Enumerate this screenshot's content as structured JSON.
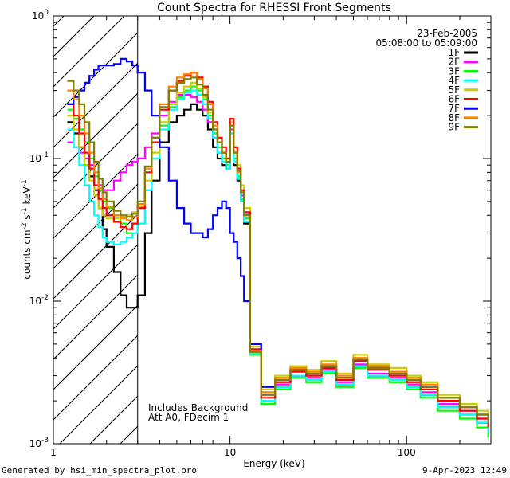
{
  "chart_data": {
    "type": "line",
    "title": "Count Spectra for RHESSI Front Segments",
    "xlabel": "Energy (keV)",
    "ylabel": "counts cm-2 s-1 keV-1",
    "xscale": "log",
    "yscale": "log",
    "xlim": [
      1,
      300
    ],
    "ylim": [
      0.001,
      1
    ],
    "x_ticks": [
      {
        "v": 1,
        "label": "1"
      },
      {
        "v": 10,
        "label": "10"
      },
      {
        "v": 100,
        "label": "100"
      }
    ],
    "y_ticks": [
      {
        "v": 1,
        "base": "10",
        "exp": "0"
      },
      {
        "v": 0.1,
        "base": "10",
        "exp": "-1"
      },
      {
        "v": 0.01,
        "base": "10",
        "exp": "-2"
      },
      {
        "v": 0.001,
        "base": "10",
        "exp": "-3"
      }
    ],
    "hatched_region": {
      "from": 1,
      "to": 3
    },
    "date": "23-Feb-2005",
    "time_range": "05:08:00 to 05:09:00",
    "notes": [
      "Includes Background",
      "Att A0, FDecim 1"
    ],
    "series": [
      {
        "name": "1F",
        "color": "#000000",
        "x": [
          1.2,
          1.3,
          1.4,
          1.5,
          1.6,
          1.7,
          1.8,
          1.9,
          2.0,
          2.2,
          2.4,
          2.6,
          2.8,
          3.0,
          3.3,
          3.6,
          4.0,
          4.5,
          5.0,
          5.5,
          6.0,
          6.5,
          7.0,
          7.5,
          8.0,
          8.5,
          9.0,
          9.5,
          10.0,
          10.5,
          11.0,
          11.5,
          12.0,
          13.0,
          15.0,
          18.0,
          22.0,
          27.0,
          33.0,
          40.0,
          50.0,
          60.0,
          70.0,
          80.0,
          100.0,
          120.0,
          150.0,
          200.0,
          250.0,
          290.0
        ],
        "y": [
          0.18,
          0.15,
          0.12,
          0.09,
          0.075,
          0.06,
          0.045,
          0.032,
          0.024,
          0.016,
          0.011,
          0.009,
          0.009,
          0.011,
          0.03,
          0.07,
          0.13,
          0.18,
          0.2,
          0.22,
          0.24,
          0.22,
          0.2,
          0.16,
          0.12,
          0.1,
          0.09,
          0.085,
          0.15,
          0.09,
          0.07,
          0.05,
          0.035,
          0.0045,
          0.002,
          0.0025,
          0.003,
          0.0028,
          0.0032,
          0.0026,
          0.0035,
          0.003,
          0.003,
          0.0028,
          0.0025,
          0.0022,
          0.0018,
          0.0016,
          0.0014,
          0.0012
        ]
      },
      {
        "name": "2F",
        "color": "#ff00ff",
        "x": [
          1.2,
          1.3,
          1.4,
          1.5,
          1.6,
          1.7,
          1.8,
          1.9,
          2.0,
          2.2,
          2.4,
          2.6,
          2.8,
          3.0,
          3.3,
          3.6,
          4.0,
          4.5,
          5.0,
          5.5,
          6.0,
          6.5,
          7.0,
          7.5,
          8.0,
          8.5,
          9.0,
          9.5,
          10.0,
          10.5,
          11.0,
          11.5,
          12.0,
          13.0,
          15.0,
          18.0,
          22.0,
          27.0,
          33.0,
          40.0,
          50.0,
          60.0,
          70.0,
          80.0,
          100.0,
          120.0,
          150.0,
          200.0,
          250.0,
          290.0
        ],
        "y": [
          0.13,
          0.12,
          0.11,
          0.1,
          0.09,
          0.075,
          0.065,
          0.06,
          0.06,
          0.07,
          0.08,
          0.09,
          0.095,
          0.1,
          0.12,
          0.15,
          0.2,
          0.25,
          0.28,
          0.28,
          0.27,
          0.25,
          0.22,
          0.18,
          0.14,
          0.11,
          0.1,
          0.09,
          0.16,
          0.1,
          0.08,
          0.055,
          0.04,
          0.005,
          0.0022,
          0.0026,
          0.003,
          0.0029,
          0.0033,
          0.0027,
          0.0036,
          0.0031,
          0.0031,
          0.0029,
          0.0026,
          0.0023,
          0.0019,
          0.0017,
          0.0015,
          0.0013
        ]
      },
      {
        "name": "3F",
        "color": "#00ff00",
        "x": [
          1.2,
          1.3,
          1.4,
          1.5,
          1.6,
          1.7,
          1.8,
          1.9,
          2.0,
          2.2,
          2.4,
          2.6,
          2.8,
          3.0,
          3.3,
          3.6,
          4.0,
          4.5,
          5.0,
          5.5,
          6.0,
          6.5,
          7.0,
          7.5,
          8.0,
          8.5,
          9.0,
          9.5,
          10.0,
          10.5,
          11.0,
          11.5,
          12.0,
          13.0,
          15.0,
          18.0,
          22.0,
          27.0,
          33.0,
          40.0,
          50.0,
          60.0,
          70.0,
          80.0,
          100.0,
          120.0,
          150.0,
          200.0,
          250.0,
          290.0
        ],
        "y": [
          0.22,
          0.19,
          0.16,
          0.13,
          0.1,
          0.075,
          0.06,
          0.05,
          0.045,
          0.04,
          0.035,
          0.03,
          0.03,
          0.035,
          0.06,
          0.1,
          0.17,
          0.23,
          0.27,
          0.3,
          0.32,
          0.3,
          0.26,
          0.2,
          0.15,
          0.12,
          0.1,
          0.09,
          0.17,
          0.1,
          0.075,
          0.052,
          0.038,
          0.0042,
          0.0019,
          0.0024,
          0.0029,
          0.0027,
          0.0031,
          0.0025,
          0.0034,
          0.0029,
          0.0029,
          0.0027,
          0.0024,
          0.0021,
          0.0017,
          0.0015,
          0.0013,
          0.0011
        ]
      },
      {
        "name": "4F",
        "color": "#00ffff",
        "x": [
          1.2,
          1.3,
          1.4,
          1.5,
          1.6,
          1.7,
          1.8,
          1.9,
          2.0,
          2.2,
          2.4,
          2.6,
          2.8,
          3.0,
          3.3,
          3.6,
          4.0,
          4.5,
          5.0,
          5.5,
          6.0,
          6.5,
          7.0,
          7.5,
          8.0,
          8.5,
          9.0,
          9.5,
          10.0,
          10.5,
          11.0,
          11.5,
          12.0,
          13.0,
          15.0,
          18.0,
          22.0,
          27.0,
          33.0,
          40.0,
          50.0,
          60.0,
          70.0,
          80.0,
          100.0,
          120.0,
          150.0,
          200.0,
          250.0,
          290.0
        ],
        "y": [
          0.16,
          0.12,
          0.09,
          0.065,
          0.05,
          0.04,
          0.033,
          0.028,
          0.026,
          0.025,
          0.026,
          0.028,
          0.03,
          0.035,
          0.06,
          0.1,
          0.16,
          0.22,
          0.26,
          0.29,
          0.3,
          0.28,
          0.24,
          0.19,
          0.14,
          0.11,
          0.095,
          0.085,
          0.15,
          0.095,
          0.072,
          0.05,
          0.036,
          0.0043,
          0.002,
          0.0025,
          0.003,
          0.0028,
          0.0032,
          0.0026,
          0.0035,
          0.003,
          0.003,
          0.0028,
          0.0025,
          0.0022,
          0.0018,
          0.0016,
          0.0014,
          0.0012
        ]
      },
      {
        "name": "5F",
        "color": "#cccc00",
        "x": [
          1.2,
          1.3,
          1.4,
          1.5,
          1.6,
          1.7,
          1.8,
          1.9,
          2.0,
          2.2,
          2.4,
          2.6,
          2.8,
          3.0,
          3.3,
          3.6,
          4.0,
          4.5,
          5.0,
          5.5,
          6.0,
          6.5,
          7.0,
          7.5,
          8.0,
          8.5,
          9.0,
          9.5,
          10.0,
          10.5,
          11.0,
          11.5,
          12.0,
          13.0,
          15.0,
          18.0,
          22.0,
          27.0,
          33.0,
          40.0,
          50.0,
          60.0,
          70.0,
          80.0,
          100.0,
          120.0,
          150.0,
          200.0,
          250.0,
          290.0
        ],
        "y": [
          0.2,
          0.16,
          0.12,
          0.09,
          0.07,
          0.055,
          0.045,
          0.04,
          0.038,
          0.038,
          0.039,
          0.04,
          0.042,
          0.046,
          0.07,
          0.11,
          0.18,
          0.24,
          0.29,
          0.32,
          0.34,
          0.31,
          0.27,
          0.21,
          0.16,
          0.13,
          0.11,
          0.1,
          0.18,
          0.12,
          0.09,
          0.065,
          0.045,
          0.0048,
          0.0024,
          0.003,
          0.0035,
          0.0033,
          0.0038,
          0.0031,
          0.0042,
          0.0036,
          0.0036,
          0.0034,
          0.003,
          0.0027,
          0.0022,
          0.0019,
          0.0017,
          0.0014
        ]
      },
      {
        "name": "6F",
        "color": "#ff0000",
        "x": [
          1.2,
          1.3,
          1.4,
          1.5,
          1.6,
          1.7,
          1.8,
          1.9,
          2.0,
          2.2,
          2.4,
          2.6,
          2.8,
          3.0,
          3.3,
          3.6,
          4.0,
          4.5,
          5.0,
          5.5,
          6.0,
          6.5,
          7.0,
          7.5,
          8.0,
          8.5,
          9.0,
          9.5,
          10.0,
          10.5,
          11.0,
          11.5,
          12.0,
          13.0,
          15.0,
          18.0,
          22.0,
          27.0,
          33.0,
          40.0,
          50.0,
          60.0,
          70.0,
          80.0,
          100.0,
          120.0,
          150.0,
          200.0,
          250.0,
          290.0
        ],
        "y": [
          0.24,
          0.2,
          0.15,
          0.11,
          0.085,
          0.065,
          0.052,
          0.045,
          0.04,
          0.036,
          0.033,
          0.032,
          0.035,
          0.045,
          0.08,
          0.13,
          0.22,
          0.3,
          0.35,
          0.38,
          0.4,
          0.37,
          0.32,
          0.25,
          0.18,
          0.14,
          0.12,
          0.1,
          0.19,
          0.12,
          0.085,
          0.06,
          0.042,
          0.0046,
          0.0021,
          0.0027,
          0.0032,
          0.003,
          0.0034,
          0.0028,
          0.0038,
          0.0033,
          0.0033,
          0.003,
          0.0027,
          0.0024,
          0.002,
          0.0017,
          0.0015,
          0.0013
        ]
      },
      {
        "name": "7F",
        "color": "#0000ff",
        "x": [
          1.2,
          1.3,
          1.4,
          1.5,
          1.6,
          1.7,
          1.8,
          1.9,
          2.0,
          2.2,
          2.4,
          2.6,
          2.8,
          3.0,
          3.3,
          3.6,
          4.0,
          4.5,
          5.0,
          5.5,
          6.0,
          6.5,
          7.0,
          7.5,
          8.0,
          8.5,
          9.0,
          9.5,
          10.0,
          10.5,
          11.0,
          11.5,
          12.0,
          13.0,
          15.0,
          18.0,
          22.0,
          27.0,
          33.0,
          40.0,
          50.0,
          60.0,
          70.0,
          80.0,
          100.0,
          120.0,
          150.0,
          200.0,
          250.0,
          290.0
        ],
        "y": [
          0.24,
          0.27,
          0.3,
          0.34,
          0.38,
          0.42,
          0.45,
          0.45,
          0.45,
          0.46,
          0.5,
          0.48,
          0.45,
          0.4,
          0.3,
          0.2,
          0.12,
          0.07,
          0.045,
          0.035,
          0.03,
          0.03,
          0.028,
          0.032,
          0.04,
          0.045,
          0.05,
          0.045,
          0.03,
          0.026,
          0.02,
          0.015,
          0.01,
          0.005,
          0.0025,
          0.0028,
          0.0033,
          0.0031,
          0.0035,
          0.0029,
          0.0039,
          0.0034,
          0.0034,
          0.0031,
          0.0028,
          0.0025,
          0.0021,
          0.0018,
          0.0016,
          0.0014
        ]
      },
      {
        "name": "8F",
        "color": "#ff8000",
        "x": [
          1.2,
          1.3,
          1.4,
          1.5,
          1.6,
          1.7,
          1.8,
          1.9,
          2.0,
          2.2,
          2.4,
          2.6,
          2.8,
          3.0,
          3.3,
          3.6,
          4.0,
          4.5,
          5.0,
          5.5,
          6.0,
          6.5,
          7.0,
          7.5,
          8.0,
          8.5,
          9.0,
          9.5,
          10.0,
          10.5,
          11.0,
          11.5,
          12.0,
          13.0,
          15.0,
          18.0,
          22.0,
          27.0,
          33.0,
          40.0,
          50.0,
          60.0,
          70.0,
          80.0,
          100.0,
          120.0,
          150.0,
          200.0,
          250.0,
          290.0
        ],
        "y": [
          0.3,
          0.26,
          0.2,
          0.15,
          0.11,
          0.08,
          0.062,
          0.052,
          0.046,
          0.04,
          0.038,
          0.037,
          0.039,
          0.048,
          0.085,
          0.14,
          0.24,
          0.32,
          0.37,
          0.39,
          0.4,
          0.36,
          0.31,
          0.24,
          0.17,
          0.13,
          0.11,
          0.095,
          0.17,
          0.11,
          0.08,
          0.058,
          0.04,
          0.0045,
          0.0023,
          0.0029,
          0.0034,
          0.0032,
          0.0036,
          0.003,
          0.004,
          0.0035,
          0.0035,
          0.0032,
          0.0029,
          0.0026,
          0.0021,
          0.0018,
          0.0016,
          0.0014
        ]
      },
      {
        "name": "9F",
        "color": "#808000",
        "x": [
          1.2,
          1.3,
          1.4,
          1.5,
          1.6,
          1.7,
          1.8,
          1.9,
          2.0,
          2.2,
          2.4,
          2.6,
          2.8,
          3.0,
          3.3,
          3.6,
          4.0,
          4.5,
          5.0,
          5.5,
          6.0,
          6.5,
          7.0,
          7.5,
          8.0,
          8.5,
          9.0,
          9.5,
          10.0,
          10.5,
          11.0,
          11.5,
          12.0,
          13.0,
          15.0,
          18.0,
          22.0,
          27.0,
          33.0,
          40.0,
          50.0,
          60.0,
          70.0,
          80.0,
          100.0,
          120.0,
          150.0,
          200.0,
          250.0,
          290.0
        ],
        "y": [
          0.35,
          0.3,
          0.24,
          0.18,
          0.13,
          0.095,
          0.072,
          0.058,
          0.05,
          0.043,
          0.04,
          0.039,
          0.041,
          0.05,
          0.088,
          0.14,
          0.23,
          0.3,
          0.34,
          0.36,
          0.37,
          0.33,
          0.28,
          0.22,
          0.16,
          0.13,
          0.11,
          0.095,
          0.17,
          0.11,
          0.082,
          0.058,
          0.04,
          0.0044,
          0.0022,
          0.0028,
          0.0033,
          0.0031,
          0.0035,
          0.0029,
          0.0039,
          0.0034,
          0.0034,
          0.0031,
          0.0028,
          0.0025,
          0.0021,
          0.0018,
          0.0016,
          0.0014
        ]
      }
    ]
  },
  "footer": {
    "generated_by": "Generated by hsi_min_spectra_plot.pro",
    "timestamp": "9-Apr-2023 12:49"
  },
  "colors": {
    "background": "#ffffff",
    "axes": "#000000"
  }
}
